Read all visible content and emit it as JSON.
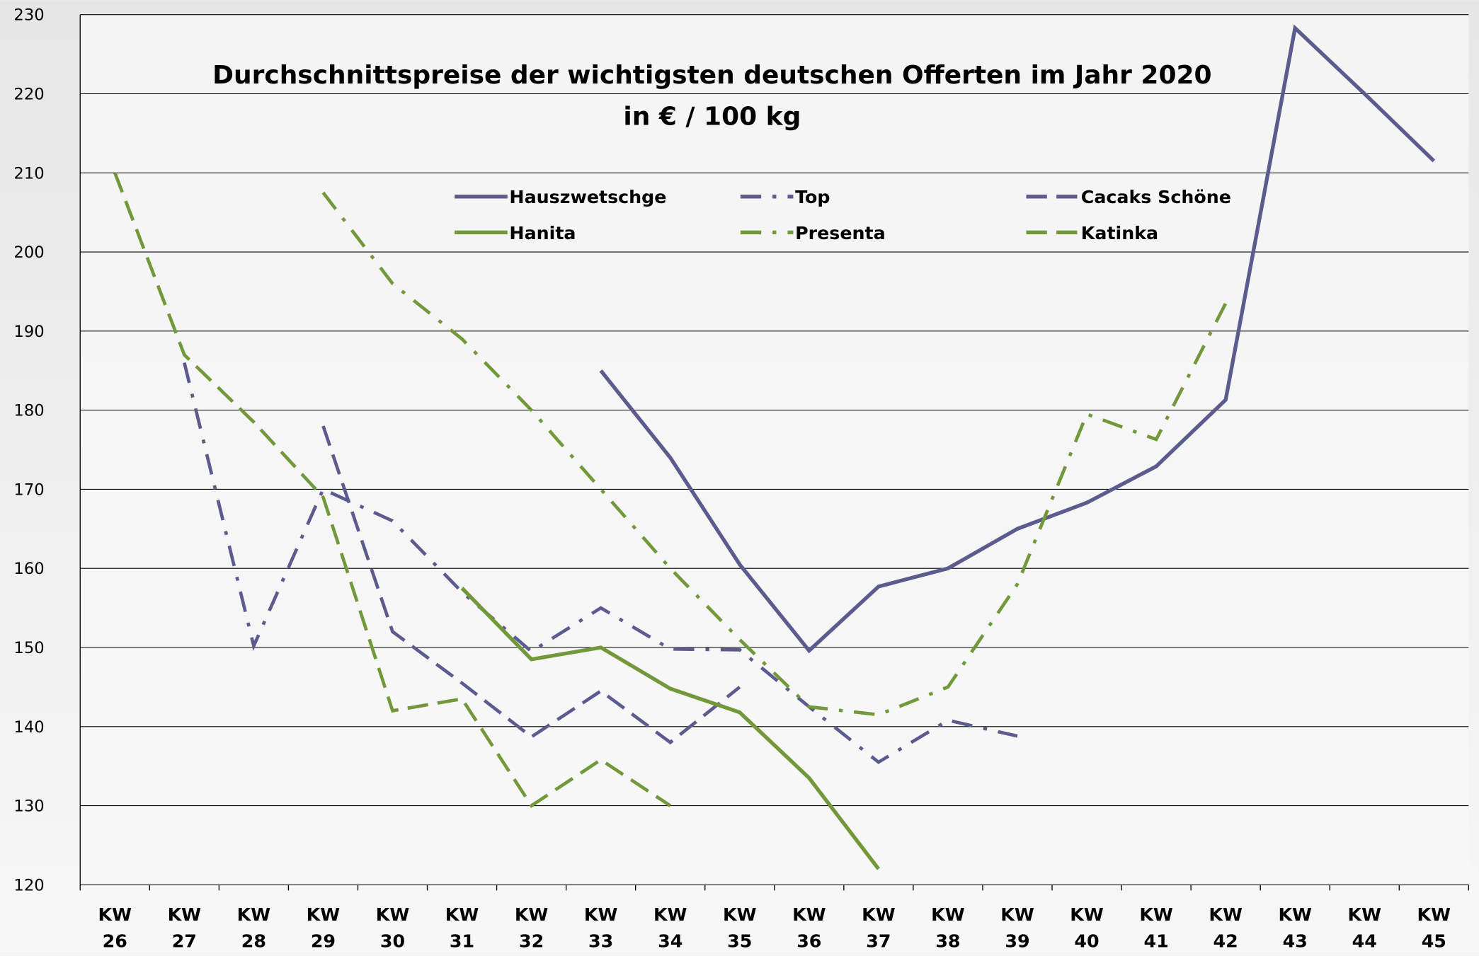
{
  "chart_data": {
    "type": "line",
    "title": "Durchschnittspreise der wichtigsten deutschen Offerten im Jahr 2020",
    "subtitle": "in € / 100 kg",
    "categories": [
      "KW 26",
      "KW 27",
      "KW 28",
      "KW 29",
      "KW 30",
      "KW 31",
      "KW 32",
      "KW 33",
      "KW 34",
      "KW 35",
      "KW 36",
      "KW 37",
      "KW 38",
      "KW 39",
      "KW 40",
      "KW 41",
      "KW 42",
      "KW 43",
      "KW 44",
      "KW 45"
    ],
    "ylim": [
      120,
      230
    ],
    "yticks": [
      120,
      130,
      140,
      150,
      160,
      170,
      180,
      190,
      200,
      210,
      220,
      230
    ],
    "grid": true,
    "series": [
      {
        "name": "Hauszwetschge",
        "color": "#5c5b8e",
        "dash": "solid",
        "values": [
          null,
          null,
          null,
          null,
          null,
          null,
          null,
          185,
          174,
          160.5,
          149.6,
          157.7,
          160,
          165,
          168.3,
          172.9,
          181.3,
          228.3,
          220,
          211.5
        ]
      },
      {
        "name": "Top",
        "color": "#5c5b8e",
        "dash": "dashdot",
        "values": [
          null,
          186,
          150.2,
          170,
          166,
          157,
          149.5,
          155,
          149.8,
          149.7,
          142.5,
          135.5,
          140.8,
          138.8,
          null,
          null,
          null,
          null,
          null,
          null
        ]
      },
      {
        "name": "Cacaks Schöne",
        "color": "#5c5b8e",
        "dash": "dash",
        "values": [
          null,
          null,
          null,
          178,
          152,
          145.5,
          138.7,
          144.5,
          138,
          145,
          null,
          null,
          null,
          null,
          null,
          null,
          null,
          null,
          null,
          null
        ]
      },
      {
        "name": "Hanita",
        "color": "#72983a",
        "dash": "solid",
        "values": [
          null,
          null,
          null,
          null,
          null,
          157.5,
          148.5,
          150,
          144.8,
          141.8,
          133.5,
          122,
          null,
          null,
          null,
          null,
          null,
          null,
          null,
          null
        ]
      },
      {
        "name": "Presenta",
        "color": "#72983a",
        "dash": "dashdot",
        "values": [
          null,
          null,
          null,
          207.5,
          196,
          189,
          180,
          170,
          160,
          151,
          142.5,
          141.5,
          145,
          158,
          179.5,
          176.3,
          193.5,
          null,
          null,
          null
        ]
      },
      {
        "name": "Katinka",
        "color": "#72983a",
        "dash": "dash",
        "values": [
          210,
          187,
          178.5,
          169,
          142,
          143.5,
          130,
          135.8,
          130,
          null,
          null,
          null,
          null,
          null,
          null,
          null,
          null,
          null,
          null,
          null
        ]
      }
    ]
  }
}
